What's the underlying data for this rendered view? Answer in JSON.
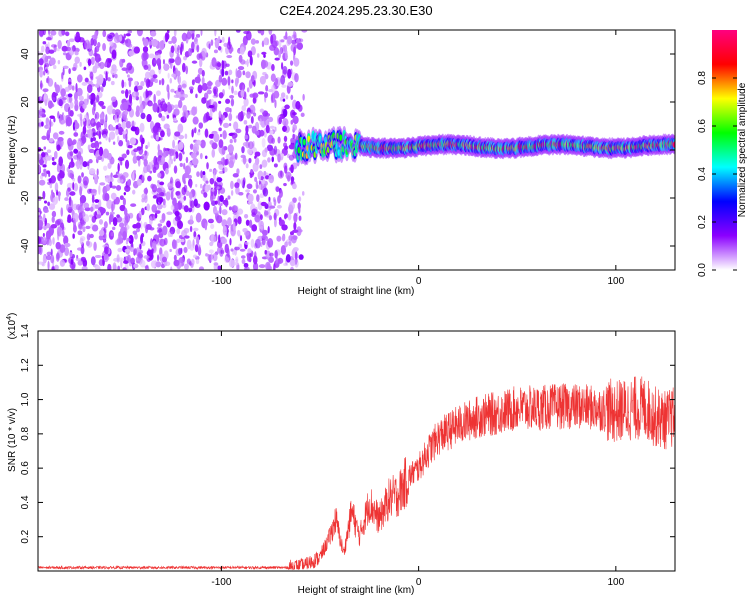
{
  "title": "C2E4.2024.295.23.30.E30",
  "chart_data": [
    {
      "type": "heatmap",
      "xlabel": "Height of straight line (km)",
      "ylabel": "Frequency (Hz)",
      "xlim": [
        -193,
        130
      ],
      "ylim": [
        -50,
        50
      ],
      "xticks": [
        -100,
        0,
        100
      ],
      "yticks": [
        -40,
        -20,
        0,
        20,
        40
      ],
      "noise_region_x": [
        -193,
        -60
      ],
      "signal_band_center_hz": 1.5,
      "signal_band_halfwidth_hz": 2.5,
      "colorbar": {
        "label": "Normalized spectral amplitude",
        "range": [
          0,
          1
        ],
        "ticks": [
          0.0,
          0.2,
          0.4,
          0.6,
          0.8
        ],
        "colormap": [
          "#ffffff",
          "#8b00ff",
          "#0000ff",
          "#00ffff",
          "#00ff00",
          "#ffff00",
          "#ff0000",
          "#ff007f"
        ]
      }
    },
    {
      "type": "line",
      "xlabel": "Height of straight line (km)",
      "ylabel": "SNR (10 * v/v)",
      "y_multiplier": "(x10",
      "y_multiplier_exp": "4",
      "xlim": [
        -193,
        130
      ],
      "ylim": [
        0,
        1.4
      ],
      "xticks": [
        -100,
        0,
        100
      ],
      "yticks": [
        0.2,
        0.4,
        0.6,
        0.8,
        1.0,
        1.2,
        1.4
      ],
      "line_color": "#ee3333",
      "trend": {
        "x": [
          -193,
          -66,
          -58,
          -50,
          -45,
          -42,
          -38,
          -34,
          -30,
          -25,
          -20,
          -15,
          -10,
          -5,
          0,
          5,
          10,
          20,
          30,
          40,
          50,
          60,
          70,
          80,
          90,
          100,
          110,
          115,
          120,
          125,
          130
        ],
        "y": [
          0.02,
          0.02,
          0.03,
          0.08,
          0.2,
          0.3,
          0.1,
          0.35,
          0.2,
          0.4,
          0.3,
          0.42,
          0.45,
          0.55,
          0.6,
          0.7,
          0.78,
          0.85,
          0.9,
          0.92,
          0.95,
          0.95,
          0.96,
          0.96,
          0.95,
          0.93,
          0.95,
          0.95,
          0.9,
          0.88,
          0.9
        ]
      }
    }
  ]
}
